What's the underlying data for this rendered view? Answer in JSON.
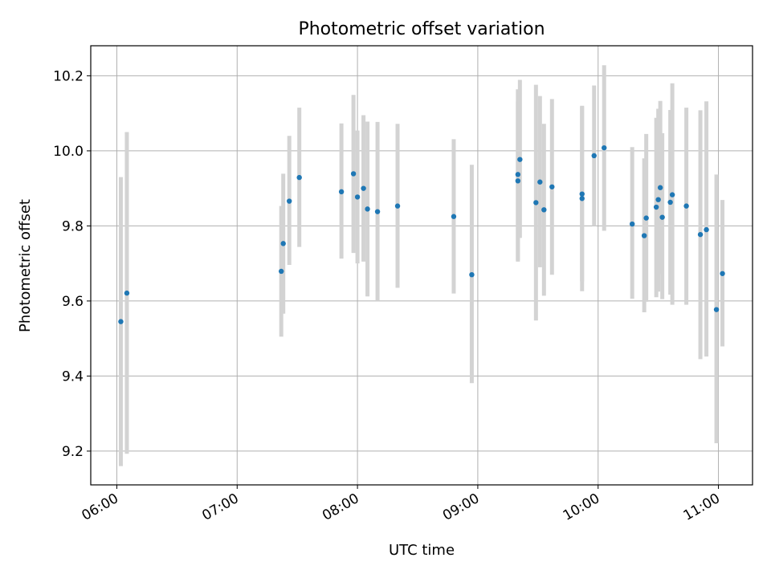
{
  "chart_data": {
    "type": "scatter",
    "title": "Photometric offset variation",
    "xlabel": "UTC time",
    "ylabel": "Photometric offset",
    "x_ticks": [
      "06:00",
      "07:00",
      "08:00",
      "09:00",
      "10:00",
      "11:00"
    ],
    "y_ticks": [
      "9.2",
      "9.4",
      "9.6",
      "9.8",
      "10.0",
      "10.2"
    ],
    "xlim": [
      "05:47",
      "11:17"
    ],
    "ylim": [
      9.11,
      10.28
    ],
    "grid": true,
    "legend": "none",
    "error_bars": true,
    "colors": {
      "points": "#1f77b4",
      "error_bars": "#d3d3d3",
      "grid": "#b0b0b0"
    },
    "points": [
      {
        "x": "06:02",
        "y": 9.545,
        "ylo": 9.16,
        "yhi": 9.93
      },
      {
        "x": "06:05",
        "y": 9.621,
        "ylo": 9.193,
        "yhi": 10.05
      },
      {
        "x": "07:22",
        "y": 9.679,
        "ylo": 9.505,
        "yhi": 9.853
      },
      {
        "x": "07:23",
        "y": 9.753,
        "ylo": 9.566,
        "yhi": 9.939
      },
      {
        "x": "07:26",
        "y": 9.866,
        "ylo": 9.696,
        "yhi": 10.04
      },
      {
        "x": "07:31",
        "y": 9.929,
        "ylo": 9.744,
        "yhi": 10.115
      },
      {
        "x": "07:52",
        "y": 9.891,
        "ylo": 9.713,
        "yhi": 10.073
      },
      {
        "x": "07:58",
        "y": 9.939,
        "ylo": 9.728,
        "yhi": 10.149
      },
      {
        "x": "08:00",
        "y": 9.877,
        "ylo": 9.7,
        "yhi": 10.054
      },
      {
        "x": "08:03",
        "y": 9.9,
        "ylo": 9.705,
        "yhi": 10.095
      },
      {
        "x": "08:05",
        "y": 9.845,
        "ylo": 9.612,
        "yhi": 10.078
      },
      {
        "x": "08:10",
        "y": 9.838,
        "ylo": 9.6,
        "yhi": 10.077
      },
      {
        "x": "08:20",
        "y": 9.853,
        "ylo": 9.635,
        "yhi": 10.072
      },
      {
        "x": "08:48",
        "y": 9.825,
        "ylo": 9.62,
        "yhi": 10.031
      },
      {
        "x": "08:57",
        "y": 9.67,
        "ylo": 9.381,
        "yhi": 9.963
      },
      {
        "x": "09:20",
        "y": 9.937,
        "ylo": 9.709,
        "yhi": 10.164
      },
      {
        "x": "09:20",
        "y": 9.92,
        "ylo": 9.705,
        "yhi": 10.133
      },
      {
        "x": "09:21",
        "y": 9.977,
        "ylo": 9.768,
        "yhi": 10.189
      },
      {
        "x": "09:29",
        "y": 9.862,
        "ylo": 9.548,
        "yhi": 10.176
      },
      {
        "x": "09:31",
        "y": 9.917,
        "ylo": 9.69,
        "yhi": 10.146
      },
      {
        "x": "09:33",
        "y": 9.843,
        "ylo": 9.614,
        "yhi": 10.072
      },
      {
        "x": "09:37",
        "y": 9.904,
        "ylo": 9.67,
        "yhi": 10.138
      },
      {
        "x": "09:52",
        "y": 9.885,
        "ylo": 9.652,
        "yhi": 10.118
      },
      {
        "x": "09:52",
        "y": 9.873,
        "ylo": 9.626,
        "yhi": 10.12
      },
      {
        "x": "09:58",
        "y": 9.987,
        "ylo": 9.8,
        "yhi": 10.174
      },
      {
        "x": "10:03",
        "y": 10.008,
        "ylo": 9.787,
        "yhi": 10.228
      },
      {
        "x": "10:17",
        "y": 9.805,
        "ylo": 9.606,
        "yhi": 10.01
      },
      {
        "x": "10:23",
        "y": 9.774,
        "ylo": 9.57,
        "yhi": 9.98
      },
      {
        "x": "10:24",
        "y": 9.821,
        "ylo": 9.598,
        "yhi": 10.045
      },
      {
        "x": "10:29",
        "y": 9.85,
        "ylo": 9.61,
        "yhi": 10.088
      },
      {
        "x": "10:30",
        "y": 9.87,
        "ylo": 9.625,
        "yhi": 10.112
      },
      {
        "x": "10:31",
        "y": 9.902,
        "ylo": 9.672,
        "yhi": 10.133
      },
      {
        "x": "10:32",
        "y": 9.823,
        "ylo": 9.605,
        "yhi": 10.047
      },
      {
        "x": "10:36",
        "y": 9.863,
        "ylo": 9.617,
        "yhi": 10.109
      },
      {
        "x": "10:37",
        "y": 9.883,
        "ylo": 9.59,
        "yhi": 10.18
      },
      {
        "x": "10:44",
        "y": 9.853,
        "ylo": 9.59,
        "yhi": 10.115
      },
      {
        "x": "10:51",
        "y": 9.777,
        "ylo": 9.445,
        "yhi": 10.108
      },
      {
        "x": "10:54",
        "y": 9.79,
        "ylo": 9.452,
        "yhi": 10.132
      },
      {
        "x": "10:59",
        "y": 9.577,
        "ylo": 9.221,
        "yhi": 9.937
      },
      {
        "x": "11:02",
        "y": 9.673,
        "ylo": 9.479,
        "yhi": 9.869
      }
    ]
  }
}
